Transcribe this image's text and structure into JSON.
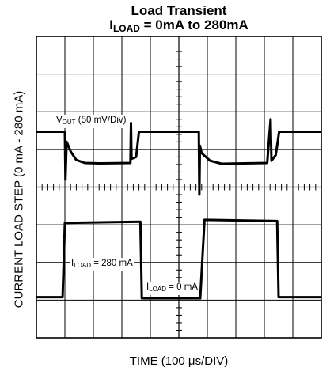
{
  "chart_data": {
    "type": "line",
    "title": "Load Transient",
    "subtitle": {
      "prefix": "I",
      "sub": "LOAD",
      "rest": " = 0mA to 280mA"
    },
    "xlabel": "TIME (100 μs/DIV)",
    "ylabel": "CURRENT LOAD STEP (0 mA - 280 mA)",
    "grid": true,
    "xdiv": 10,
    "ydiv": 8,
    "xlim": [
      0,
      10
    ],
    "ylim": [
      0,
      8
    ],
    "annotations": [
      {
        "prefix": "V",
        "sub": "OUT",
        "rest": " (50 mV/Div)"
      },
      {
        "prefix": "I",
        "sub": "LOAD",
        "rest": " = 280 mA"
      },
      {
        "prefix": "I",
        "sub": "LOAD",
        "rest": " = 0 mA"
      }
    ],
    "series": [
      {
        "values": [
          [
            0.0,
            5.47
          ],
          [
            1.0,
            5.47
          ],
          [
            1.02,
            4.2
          ],
          [
            1.06,
            5.2
          ],
          [
            1.12,
            5.1
          ],
          [
            1.2,
            4.95
          ],
          [
            1.4,
            4.72
          ],
          [
            1.7,
            4.64
          ],
          [
            2.2,
            4.63
          ],
          [
            3.3,
            4.64
          ],
          [
            3.32,
            5.7
          ],
          [
            3.34,
            4.75
          ],
          [
            3.5,
            4.8
          ],
          [
            3.6,
            5.47
          ],
          [
            5.7,
            5.47
          ],
          [
            5.72,
            3.8
          ],
          [
            5.74,
            5.1
          ],
          [
            5.8,
            4.9
          ],
          [
            6.1,
            4.7
          ],
          [
            6.5,
            4.62
          ],
          [
            8.1,
            4.64
          ],
          [
            8.22,
            5.8
          ],
          [
            8.25,
            4.7
          ],
          [
            8.4,
            4.85
          ],
          [
            8.52,
            5.47
          ],
          [
            10.0,
            5.47
          ]
        ]
      },
      {
        "values": [
          [
            0.0,
            1.08
          ],
          [
            0.92,
            1.08
          ],
          [
            1.0,
            3.05
          ],
          [
            3.65,
            3.08
          ],
          [
            3.7,
            1.05
          ],
          [
            5.75,
            1.05
          ],
          [
            5.9,
            3.13
          ],
          [
            8.45,
            3.1
          ],
          [
            8.5,
            1.08
          ],
          [
            10.0,
            1.08
          ]
        ]
      }
    ]
  }
}
